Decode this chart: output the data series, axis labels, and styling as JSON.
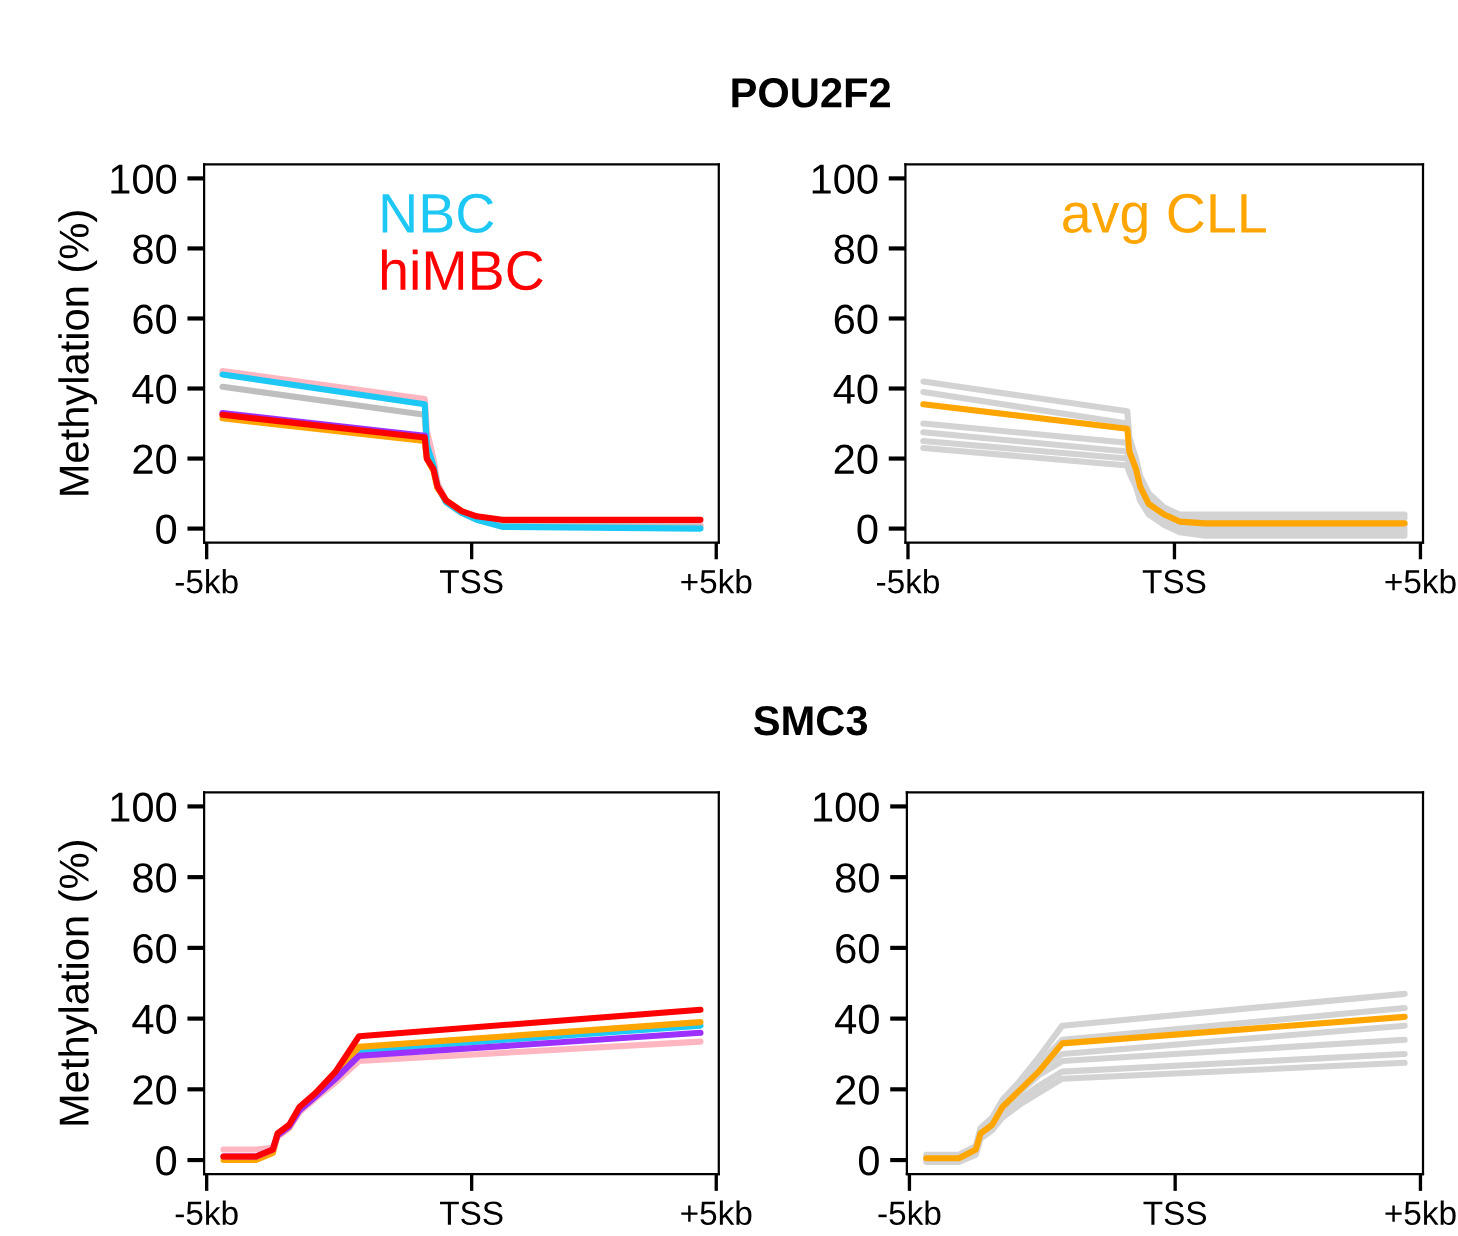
{
  "chart_data": [
    {
      "type": "line",
      "title": "POU2F2",
      "ylabel": "Methylation (%)",
      "legend": "top",
      "xlim": [
        -5.05,
        5.05
      ],
      "ylim": [
        -4,
        104
      ],
      "xticks": [
        {
          "value": -5,
          "label": "-5kb"
        },
        {
          "value": 0.2,
          "label": "TSS"
        },
        {
          "value": 5,
          "label": "+5kb"
        }
      ],
      "yticks": [
        0,
        20,
        40,
        60,
        80,
        100
      ],
      "x": [
        -4.69,
        -0.72,
        -0.68,
        -0.55,
        -0.47,
        -0.3,
        0,
        0.3,
        0.8,
        4.69
      ],
      "series": [
        {
          "color": "#ffb6c1",
          "values": [
            45,
            37,
            28,
            20,
            13,
            8,
            5,
            3,
            1.5,
            1
          ]
        },
        {
          "color": "#bebebe",
          "values": [
            40.5,
            32.5,
            22,
            17,
            12,
            7.5,
            4.5,
            2.5,
            1,
            0.5
          ]
        },
        {
          "name": "NBC",
          "color": "#1ec8f5",
          "values": [
            44,
            35.5,
            24,
            18,
            12,
            7.5,
            4.5,
            2.5,
            0.5,
            0
          ]
        },
        {
          "color": "#ffa500",
          "values": [
            31.5,
            25,
            20,
            16.5,
            11.5,
            8,
            5,
            null,
            null,
            null
          ]
        },
        {
          "color": "#9b30ff",
          "values": [
            33,
            26.5,
            null,
            null,
            null,
            null,
            null,
            null,
            null,
            null
          ]
        },
        {
          "name": "hiMBC",
          "color": "#ff0000",
          "values": [
            32.5,
            26,
            20,
            17,
            12,
            8,
            5,
            3.5,
            2.5,
            2.5
          ]
        }
      ]
    },
    {
      "type": "line",
      "legend": "top",
      "xlim": [
        -5.05,
        5.05
      ],
      "ylim": [
        -4,
        104
      ],
      "xticks": [
        {
          "value": -5,
          "label": "-5kb"
        },
        {
          "value": 0.2,
          "label": "TSS"
        },
        {
          "value": 5,
          "label": "+5kb"
        }
      ],
      "yticks": [
        0,
        20,
        40,
        60,
        80,
        100
      ],
      "x": [
        -4.7,
        -0.72,
        -0.68,
        -0.55,
        -0.47,
        -0.3,
        0,
        0.3,
        0.8,
        4.69
      ],
      "series": [
        {
          "color": "#d3d3d3",
          "values": [
            42,
            33.5,
            26,
            20,
            15,
            10,
            6,
            4,
            4,
            4
          ]
        },
        {
          "color": "#d3d3d3",
          "values": [
            39,
            30,
            24,
            18,
            13,
            8,
            5,
            3,
            3,
            3
          ]
        },
        {
          "color": "#d3d3d3",
          "values": [
            30,
            24.5,
            20,
            16,
            11,
            7,
            4,
            2,
            1,
            1
          ]
        },
        {
          "color": "#d3d3d3",
          "values": [
            27.5,
            22,
            18,
            14,
            10,
            6,
            3,
            1,
            0,
            0
          ]
        },
        {
          "color": "#d3d3d3",
          "values": [
            25,
            20,
            17,
            13,
            9,
            5,
            2,
            0,
            -1,
            -1
          ]
        },
        {
          "color": "#d3d3d3",
          "values": [
            23,
            18,
            16,
            12,
            8,
            4,
            1,
            -1,
            -2,
            -2
          ]
        },
        {
          "name": "avg CLL",
          "color": "#ffa500",
          "values": [
            35.5,
            28.5,
            22,
            17,
            12,
            7,
            4,
            2,
            1.5,
            1.5
          ]
        }
      ]
    },
    {
      "type": "line",
      "title": "SMC3",
      "ylabel": "Methylation (%)",
      "xlim": [
        -5.05,
        5.05
      ],
      "ylim": [
        -4,
        104
      ],
      "xticks": [
        {
          "value": -5,
          "label": "-5kb"
        },
        {
          "value": 0.2,
          "label": "TSS"
        },
        {
          "value": 5,
          "label": "+5kb"
        }
      ],
      "yticks": [
        0,
        20,
        40,
        60,
        80,
        100
      ],
      "x": [
        -4.67,
        -4.03,
        -3.7,
        -3.61,
        -3.38,
        -3.18,
        -2.86,
        -2.47,
        -2.01,
        4.69
      ],
      "series": [
        {
          "color": "#ffb6c1",
          "values": [
            3,
            3,
            3.5,
            6.5,
            9,
            13.5,
            17.5,
            22,
            28,
            33.5
          ]
        },
        {
          "color": "#1ec8f5",
          "values": [
            null,
            null,
            null,
            null,
            null,
            null,
            null,
            null,
            31,
            38
          ]
        },
        {
          "color": "#ffa500",
          "values": [
            0,
            0,
            2,
            7,
            9.5,
            14.5,
            18.5,
            24,
            32,
            39
          ]
        },
        {
          "color": "#9b30ff",
          "values": [
            1,
            1,
            3,
            7,
            9.5,
            14,
            18,
            23,
            29.5,
            36
          ]
        },
        {
          "color": "#ff0000",
          "values": [
            1,
            1,
            3,
            7.5,
            10,
            15,
            19,
            25,
            35,
            42.5
          ]
        }
      ]
    },
    {
      "type": "line",
      "xlim": [
        -5.05,
        5.05
      ],
      "ylim": [
        -4,
        104
      ],
      "xticks": [
        {
          "value": -5,
          "label": "-5kb"
        },
        {
          "value": 0.2,
          "label": "TSS"
        },
        {
          "value": 5,
          "label": "+5kb"
        }
      ],
      "yticks": [
        0,
        20,
        40,
        60,
        80,
        100
      ],
      "x": [
        -4.67,
        -4.03,
        -3.7,
        -3.61,
        -3.38,
        -3.18,
        -2.86,
        -2.47,
        -2.01,
        4.69
      ],
      "series": [
        {
          "color": "#d3d3d3",
          "values": [
            1.5,
            1.5,
            4,
            9,
            12,
            17,
            22,
            29,
            38,
            47
          ]
        },
        {
          "color": "#d3d3d3",
          "values": [
            1,
            1,
            3.5,
            8.5,
            11,
            16,
            21,
            27,
            34,
            43
          ]
        },
        {
          "color": "#d3d3d3",
          "values": [
            0.5,
            0.5,
            3,
            8,
            10.5,
            15,
            20,
            26,
            30,
            38
          ]
        },
        {
          "color": "#d3d3d3",
          "values": [
            0,
            0,
            2.5,
            7,
            9.5,
            14,
            19,
            24,
            28,
            34
          ]
        },
        {
          "color": "#d3d3d3",
          "values": [
            0,
            0,
            2,
            6.5,
            9,
            13,
            17,
            21,
            25,
            30
          ]
        },
        {
          "color": "#d3d3d3",
          "values": [
            -0.5,
            -0.5,
            1.5,
            6,
            8.5,
            12,
            15.5,
            19,
            23,
            27.5
          ]
        },
        {
          "color": "#ffa500",
          "values": [
            0.5,
            0.5,
            3,
            7.5,
            10,
            15,
            19.5,
            25,
            33,
            40.5
          ]
        }
      ]
    }
  ]
}
